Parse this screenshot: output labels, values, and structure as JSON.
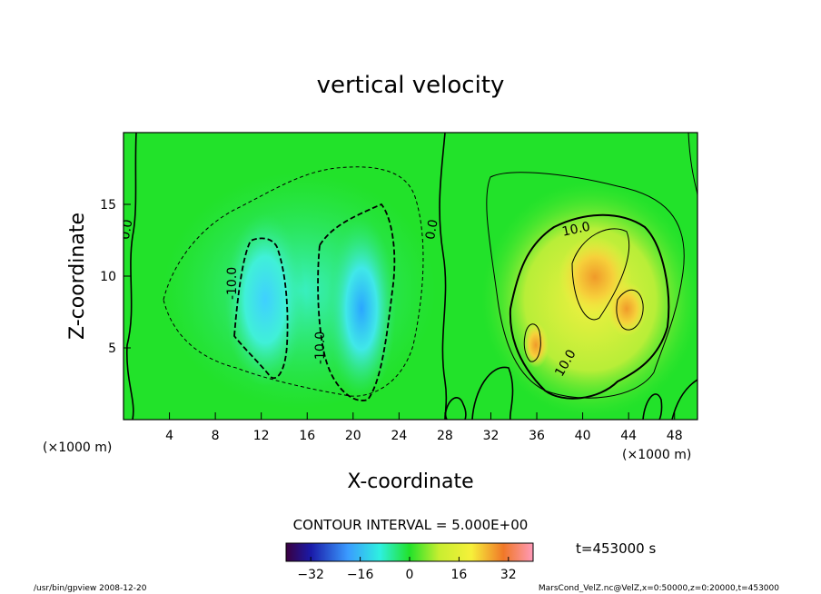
{
  "chart_data": {
    "type": "heatmap",
    "title": "vertical velocity",
    "xlabel": "X-coordinate",
    "ylabel": "Z-coordinate",
    "xunit_left": "(×1000 m)",
    "xunit_right": "(×1000 m)",
    "xlim": [
      0,
      50
    ],
    "ylim": [
      0,
      20
    ],
    "xticks": [
      4,
      8,
      12,
      16,
      20,
      24,
      28,
      32,
      36,
      40,
      44,
      48
    ],
    "yticks": [
      5,
      10,
      15
    ],
    "contour_interval_label": "CONTOUR INTERVAL = 5.000E+00",
    "time_label": "t=453000 s",
    "colorbar": {
      "min": -40,
      "max": 40,
      "ticks": [
        -32,
        -16,
        0,
        16,
        32
      ]
    },
    "contour_labels": [
      {
        "text": "0.0",
        "x": 0.6,
        "y": 13.2,
        "rot": -80
      },
      {
        "text": "-10.0",
        "x": 9.8,
        "y": 9.5,
        "rot": -90
      },
      {
        "text": "-10.0",
        "x": 17.5,
        "y": 5.0,
        "rot": -90
      },
      {
        "text": "0.0",
        "x": 27.2,
        "y": 13.2,
        "rot": -80
      },
      {
        "text": "10.0",
        "x": 39.5,
        "y": 13.0,
        "rot": -12
      },
      {
        "text": "10.0",
        "x": 38.8,
        "y": 3.8,
        "rot": -60
      }
    ]
  },
  "footer": {
    "left": "/usr/bin/gpview  2008-12-20",
    "right": "MarsCond_VelZ.nc@VelZ,x=0:50000,z=0:20000,t=453000"
  },
  "colors": {
    "background": "#1fe21f",
    "frame": "#000000"
  }
}
